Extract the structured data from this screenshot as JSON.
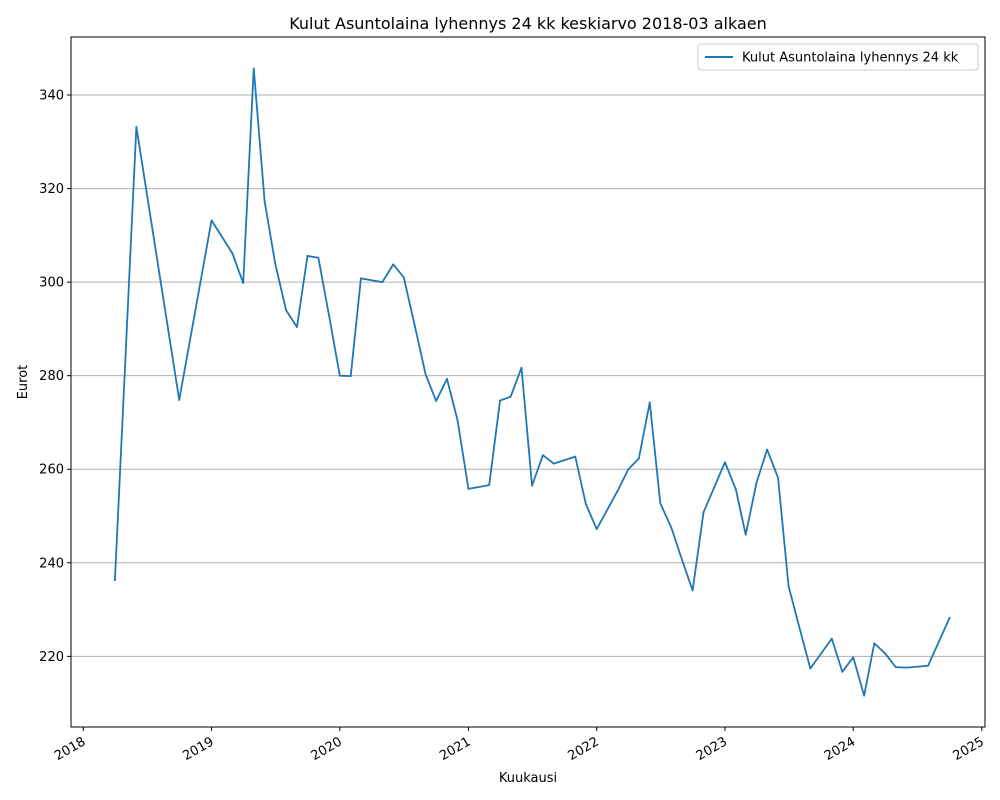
{
  "chart_data": {
    "type": "line",
    "title": "Kulut Asuntolaina lyhennys 24 kk keskiarvo 2018-03 alkaen",
    "xlabel": "Kuukausi",
    "ylabel": "Eurot",
    "x_tick_labels": [
      "2018",
      "2019",
      "2020",
      "2021",
      "2022",
      "2023",
      "2024",
      "2025"
    ],
    "y_ticks": [
      220,
      240,
      260,
      280,
      300,
      320,
      340
    ],
    "xlim": [
      "2017-11-27",
      "2025-01-10"
    ],
    "ylim": [
      204.9,
      352.4
    ],
    "grid": "horizontal",
    "legend_position": "top-right",
    "color": "#1f77b4",
    "series": [
      {
        "name": "Kulut Asuntolaina lyhennys 24 kk",
        "points": [
          [
            "2018-04-01",
            236.3
          ],
          [
            "2018-06-01",
            333.2
          ],
          [
            "2018-10-01",
            274.8
          ],
          [
            "2019-01-01",
            313.2
          ],
          [
            "2019-03-01",
            306.2
          ],
          [
            "2019-04-01",
            299.8
          ],
          [
            "2019-05-01",
            345.7
          ],
          [
            "2019-06-01",
            317.3
          ],
          [
            "2019-07-01",
            304.0
          ],
          [
            "2019-08-01",
            294.0
          ],
          [
            "2019-09-01",
            290.4
          ],
          [
            "2019-10-01",
            305.6
          ],
          [
            "2019-11-01",
            305.2
          ],
          [
            "2019-12-01",
            293.0
          ],
          [
            "2020-01-01",
            280.0
          ],
          [
            "2020-02-01",
            279.9
          ],
          [
            "2020-03-01",
            300.8
          ],
          [
            "2020-05-01",
            300.0
          ],
          [
            "2020-06-01",
            303.8
          ],
          [
            "2020-07-01",
            301.0
          ],
          [
            "2020-08-01",
            290.8
          ],
          [
            "2020-09-01",
            280.3
          ],
          [
            "2020-10-01",
            274.6
          ],
          [
            "2020-11-01",
            279.3
          ],
          [
            "2020-12-01",
            270.5
          ],
          [
            "2021-01-01",
            255.8
          ],
          [
            "2021-03-01",
            256.6
          ],
          [
            "2021-04-01",
            274.7
          ],
          [
            "2021-05-01",
            275.5
          ],
          [
            "2021-06-01",
            281.7
          ],
          [
            "2021-07-01",
            256.5
          ],
          [
            "2021-08-01",
            263.0
          ],
          [
            "2021-09-01",
            261.2
          ],
          [
            "2021-11-01",
            262.7
          ],
          [
            "2021-12-01",
            252.6
          ],
          [
            "2022-01-01",
            247.2
          ],
          [
            "2022-03-01",
            255.3
          ],
          [
            "2022-04-01",
            260.0
          ],
          [
            "2022-05-01",
            262.3
          ],
          [
            "2022-06-01",
            274.3
          ],
          [
            "2022-07-01",
            252.7
          ],
          [
            "2022-08-01",
            247.6
          ],
          [
            "2022-09-01",
            240.6
          ],
          [
            "2022-10-01",
            234.1
          ],
          [
            "2022-11-01",
            250.8
          ],
          [
            "2023-01-01",
            261.5
          ],
          [
            "2023-02-01",
            255.7
          ],
          [
            "2023-03-01",
            246.0
          ],
          [
            "2023-04-01",
            257.2
          ],
          [
            "2023-05-01",
            264.2
          ],
          [
            "2023-06-01",
            258.2
          ],
          [
            "2023-07-01",
            235.0
          ],
          [
            "2023-08-01",
            226.1
          ],
          [
            "2023-09-01",
            217.4
          ],
          [
            "2023-11-01",
            223.8
          ],
          [
            "2023-12-01",
            216.7
          ],
          [
            "2024-01-01",
            219.8
          ],
          [
            "2024-02-01",
            211.6
          ],
          [
            "2024-03-01",
            222.8
          ],
          [
            "2024-04-01",
            220.6
          ],
          [
            "2024-05-01",
            217.7
          ],
          [
            "2024-06-01",
            217.6
          ],
          [
            "2024-08-01",
            218.0
          ],
          [
            "2024-10-01",
            228.2
          ]
        ]
      }
    ]
  }
}
